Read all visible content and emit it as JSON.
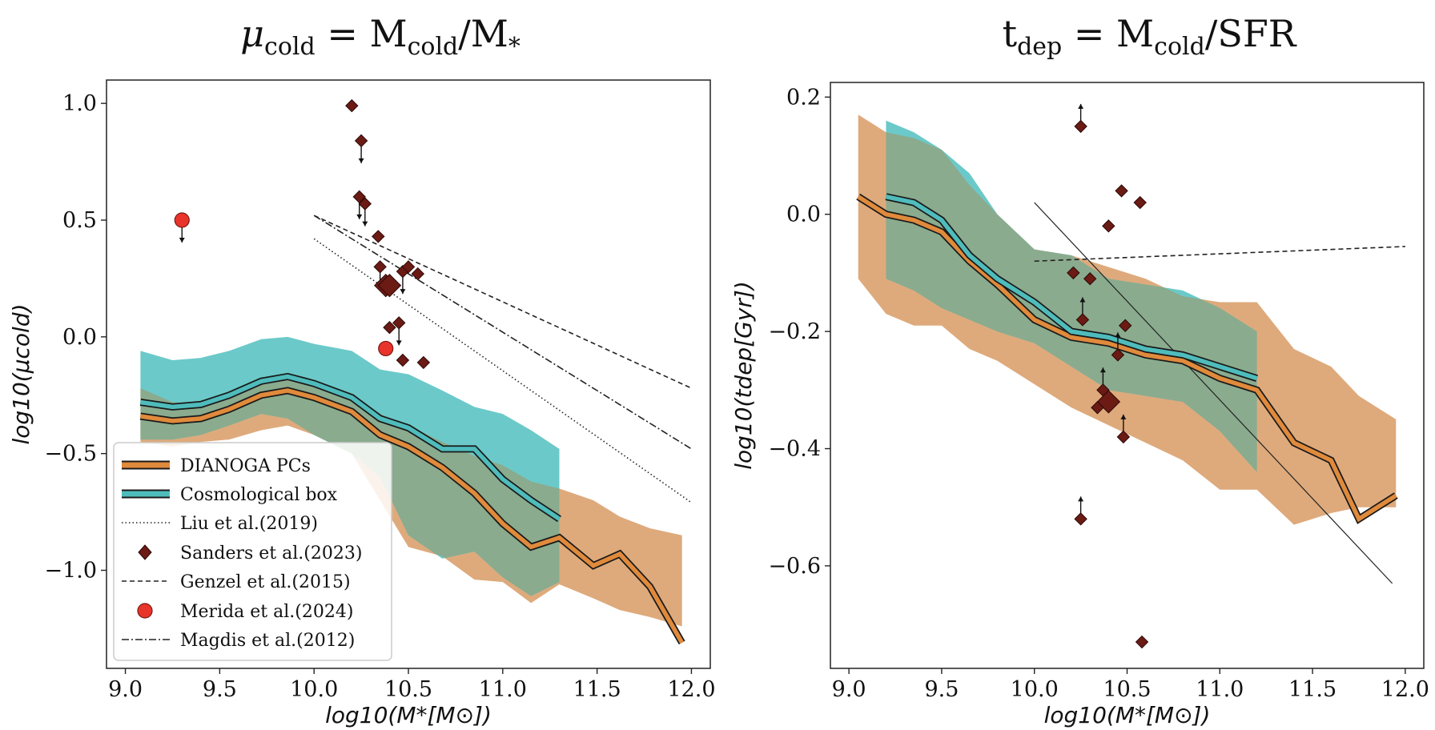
{
  "figure": {
    "panels": [
      {
        "title": {
          "main1": "μ",
          "sub1": "cold",
          "main2": " = M",
          "sub2": "cold",
          "main3": "/M",
          "sub3": "*"
        },
        "xlabel": "log10(M*[M⊙])",
        "ylabel": "log10(μcold)"
      },
      {
        "title": {
          "main1": "t",
          "sub1": "dep",
          "main2": " = M",
          "sub2": "cold",
          "main3": "/SFR",
          "sub3": ""
        },
        "xlabel": "log10(M*[M⊙])",
        "ylabel": "log10(tdep[Gyr])"
      }
    ],
    "legend": {
      "entries": [
        {
          "id": "pcs",
          "label": "DIANOGA PCs"
        },
        {
          "id": "box",
          "label": "Cosmological box"
        },
        {
          "id": "liu",
          "label": "Liu et al.(2019)"
        },
        {
          "id": "sanders",
          "label": "Sanders et al.(2023)"
        },
        {
          "id": "genzel",
          "label": "Genzel et al.(2015)"
        },
        {
          "id": "merida",
          "label": "Merida et al.(2024)"
        },
        {
          "id": "magdis",
          "label": "Magdis et al.(2012)"
        }
      ]
    }
  },
  "colors": {
    "pcs_line": "#e08a3c",
    "pcs_band": "#deaa7c",
    "box_line": "#4fbcbc",
    "box_band": "#6cc9c9",
    "overlap": "#8aab8e",
    "sanders": "#6b1a14",
    "merida": "#e8342a"
  },
  "chart_data": [
    {
      "type": "line",
      "title": "μcold = Mcold/M*",
      "xlabel": "log10(M*[M⊙])",
      "ylabel": "log10(μcold)",
      "xlim": [
        8.9,
        12.1
      ],
      "ylim": [
        -1.42,
        1.1
      ],
      "xticks": [
        9.0,
        9.5,
        10.0,
        10.5,
        11.0,
        11.5,
        12.0
      ],
      "yticks": [
        1.0,
        0.5,
        0.0,
        -0.5,
        -1.0
      ],
      "grid": false,
      "legend_position": "lower-left",
      "series": [
        {
          "name": "DIANOGA PCs",
          "x": [
            9.08,
            9.25,
            9.4,
            9.55,
            9.72,
            9.86,
            10.0,
            10.2,
            10.35,
            10.5,
            10.68,
            10.85,
            11.0,
            11.15,
            11.3,
            11.48,
            11.62,
            11.78,
            11.95
          ],
          "y": [
            -0.34,
            -0.36,
            -0.35,
            -0.31,
            -0.25,
            -0.23,
            -0.26,
            -0.32,
            -0.42,
            -0.47,
            -0.56,
            -0.67,
            -0.8,
            -0.9,
            -0.86,
            -0.98,
            -0.93,
            -1.07,
            -1.31
          ],
          "band_upper": [
            -0.22,
            -0.28,
            -0.29,
            -0.26,
            -0.2,
            -0.18,
            -0.21,
            -0.26,
            -0.33,
            -0.38,
            -0.45,
            -0.51,
            -0.55,
            -0.62,
            -0.65,
            -0.7,
            -0.77,
            -0.82,
            -0.85
          ],
          "band_lower": [
            -0.45,
            -0.47,
            -0.45,
            -0.44,
            -0.4,
            -0.38,
            -0.42,
            -0.5,
            -0.7,
            -0.9,
            -0.94,
            -1.04,
            -1.05,
            -1.14,
            -1.06,
            -1.12,
            -1.17,
            -1.2,
            -1.24
          ]
        },
        {
          "name": "Cosmological box",
          "x": [
            9.08,
            9.25,
            9.4,
            9.55,
            9.72,
            9.86,
            10.0,
            10.2,
            10.35,
            10.5,
            10.68,
            10.85,
            11.0,
            11.15,
            11.3
          ],
          "y": [
            -0.28,
            -0.3,
            -0.29,
            -0.25,
            -0.19,
            -0.17,
            -0.2,
            -0.26,
            -0.35,
            -0.39,
            -0.48,
            -0.48,
            -0.61,
            -0.7,
            -0.78
          ],
          "band_upper": [
            -0.06,
            -0.1,
            -0.09,
            -0.06,
            -0.01,
            0.0,
            -0.03,
            -0.06,
            -0.14,
            -0.16,
            -0.23,
            -0.3,
            -0.33,
            -0.4,
            -0.48
          ],
          "band_lower": [
            -0.44,
            -0.44,
            -0.42,
            -0.38,
            -0.33,
            -0.35,
            -0.42,
            -0.5,
            -0.6,
            -0.85,
            -0.95,
            -0.92,
            -1.03,
            -1.11,
            -1.05
          ]
        },
        {
          "name": "Liu et al.(2019)",
          "x": [
            10.0,
            12.0
          ],
          "y": [
            0.42,
            -0.71
          ]
        },
        {
          "name": "Genzel et al.(2015)",
          "x": [
            10.0,
            12.0
          ],
          "y": [
            0.52,
            -0.22
          ]
        },
        {
          "name": "Magdis et al.(2012)",
          "x": [
            10.0,
            12.0
          ],
          "y": [
            0.52,
            -0.48
          ]
        },
        {
          "name": "Sanders et al.(2023)",
          "x": [
            10.2,
            10.25,
            10.24,
            10.27,
            10.34,
            10.35,
            10.38,
            10.4,
            10.47,
            10.5,
            10.55,
            10.4,
            10.45,
            10.47,
            10.58
          ],
          "y": [
            0.99,
            0.84,
            0.6,
            0.57,
            0.43,
            0.3,
            0.22,
            0.22,
            0.28,
            0.3,
            0.27,
            0.04,
            0.06,
            -0.1,
            -0.11
          ]
        },
        {
          "name": "Merida et al.(2024)",
          "x": [
            9.3,
            10.38
          ],
          "y": [
            0.5,
            -0.05
          ]
        }
      ]
    },
    {
      "type": "line",
      "title": "tdep = Mcold/SFR",
      "xlabel": "log10(M*[M⊙])",
      "ylabel": "log10(tdep[Gyr])",
      "xlim": [
        8.9,
        12.1
      ],
      "ylim": [
        -0.775,
        0.225
      ],
      "xticks": [
        9.0,
        9.5,
        10.0,
        10.5,
        11.0,
        11.5,
        12.0
      ],
      "yticks": [
        0.2,
        0.0,
        -0.2,
        -0.4,
        -0.6
      ],
      "grid": false,
      "series": [
        {
          "name": "DIANOGA PCs",
          "x": [
            9.05,
            9.2,
            9.35,
            9.5,
            9.65,
            9.8,
            10.0,
            10.2,
            10.4,
            10.6,
            10.8,
            11.0,
            11.2,
            11.4,
            11.6,
            11.75,
            11.95
          ],
          "y": [
            0.03,
            0.0,
            -0.01,
            -0.03,
            -0.08,
            -0.12,
            -0.18,
            -0.21,
            -0.22,
            -0.24,
            -0.25,
            -0.28,
            -0.3,
            -0.39,
            -0.42,
            -0.52,
            -0.48
          ],
          "band_upper": [
            0.17,
            0.14,
            0.13,
            0.11,
            0.05,
            0.0,
            -0.06,
            -0.07,
            -0.09,
            -0.11,
            -0.14,
            -0.15,
            -0.15,
            -0.23,
            -0.26,
            -0.31,
            -0.35
          ],
          "band_lower": [
            -0.11,
            -0.17,
            -0.19,
            -0.19,
            -0.23,
            -0.25,
            -0.29,
            -0.33,
            -0.36,
            -0.39,
            -0.42,
            -0.47,
            -0.47,
            -0.53,
            -0.51,
            -0.5,
            -0.5
          ]
        },
        {
          "name": "Cosmological box",
          "x": [
            9.2,
            9.35,
            9.5,
            9.65,
            9.8,
            10.0,
            10.2,
            10.4,
            10.6,
            10.8,
            11.0,
            11.2
          ],
          "y": [
            0.03,
            0.02,
            -0.01,
            -0.07,
            -0.11,
            -0.15,
            -0.2,
            -0.21,
            -0.23,
            -0.24,
            -0.26,
            -0.28
          ],
          "band_upper": [
            0.16,
            0.14,
            0.11,
            0.07,
            0.0,
            -0.06,
            -0.07,
            -0.11,
            -0.12,
            -0.13,
            -0.16,
            -0.2
          ],
          "band_lower": [
            -0.11,
            -0.13,
            -0.16,
            -0.18,
            -0.2,
            -0.22,
            -0.26,
            -0.3,
            -0.31,
            -0.32,
            -0.37,
            -0.44
          ]
        },
        {
          "name": "Liu et al.(2019)",
          "x": [
            10.0,
            11.93
          ],
          "y": [
            0.02,
            -0.63
          ]
        },
        {
          "name": "Genzel et al.(2015)",
          "x": [
            10.0,
            12.0
          ],
          "y": [
            -0.08,
            -0.055
          ]
        },
        {
          "name": "Sanders et al.(2023)",
          "x": [
            10.25,
            10.47,
            10.57,
            10.4,
            10.21,
            10.3,
            10.26,
            10.49,
            10.45,
            10.37,
            10.4,
            10.34,
            10.48,
            10.25,
            10.58
          ],
          "y": [
            0.15,
            0.04,
            0.02,
            -0.02,
            -0.1,
            -0.11,
            -0.18,
            -0.19,
            -0.24,
            -0.3,
            -0.32,
            -0.33,
            -0.38,
            -0.52,
            -0.73
          ]
        }
      ]
    }
  ]
}
